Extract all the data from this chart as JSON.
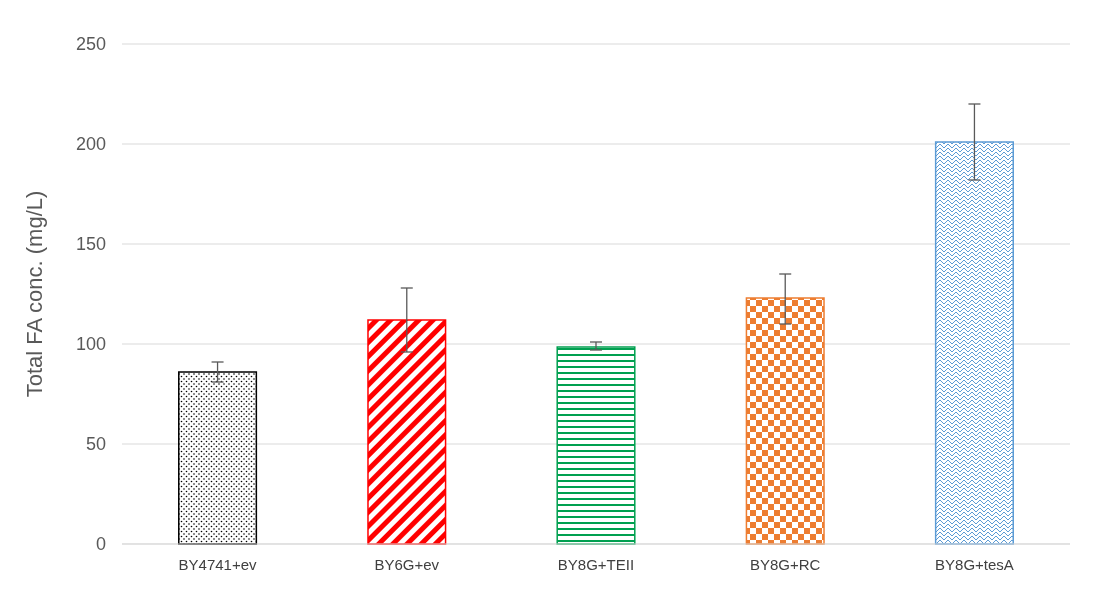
{
  "chart_data": {
    "type": "bar",
    "ylabel": "Total FA conc. (mg/L)",
    "categories": [
      "BY4741+ev",
      "BY6G+ev",
      "BY8G+TEII",
      "BY8G+RC",
      "BY8G+tesA"
    ],
    "values": [
      86,
      112,
      98.5,
      123,
      201
    ],
    "colors": [
      "#000000",
      "#ff0000",
      "#00a050",
      "#ed7d31",
      "#5b9bd5"
    ],
    "errors": [
      [
        81,
        91
      ],
      [
        96,
        128
      ],
      [
        97,
        101
      ],
      [
        110,
        135
      ],
      [
        182,
        220
      ]
    ],
    "ylim": [
      0,
      250
    ],
    "yticks": [
      0,
      50,
      100,
      150,
      200,
      250
    ],
    "grid": "y",
    "legend": false
  }
}
